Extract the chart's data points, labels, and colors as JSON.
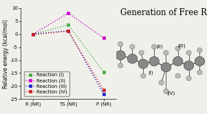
{
  "x_labels": [
    "R (NR)",
    "TS (NR)",
    "P (NR)"
  ],
  "x_positions": [
    0,
    1,
    2
  ],
  "series": [
    {
      "name": "Reaction (I)",
      "values": [
        0.0,
        3.5,
        -14.5
      ],
      "color": "#44aa44",
      "linewidth": 1.0
    },
    {
      "name": "Reaction (II)",
      "values": [
        0.0,
        8.0,
        -1.5
      ],
      "color": "#cc00cc",
      "linewidth": 1.0
    },
    {
      "name": "Reaction (III)",
      "values": [
        0.0,
        1.3,
        -23.0
      ],
      "color": "#2222cc",
      "linewidth": 1.0
    },
    {
      "name": "Reaction (IV)",
      "values": [
        -0.2,
        1.1,
        -21.5
      ],
      "color": "#cc2222",
      "linewidth": 1.0
    }
  ],
  "ylabel": "Relative energy (kcal/mol)",
  "ylim": [
    -25,
    10
  ],
  "yticks": [
    -25,
    -20,
    -15,
    -10,
    -5,
    0,
    5,
    10
  ],
  "title": "Generation of Free Radical",
  "title_fontsize": 8.5,
  "axis_fontsize": 5.5,
  "tick_fontsize": 5.0,
  "legend_fontsize": 5.0,
  "background_color": "#f0f0ea",
  "marker_size": 2.5
}
